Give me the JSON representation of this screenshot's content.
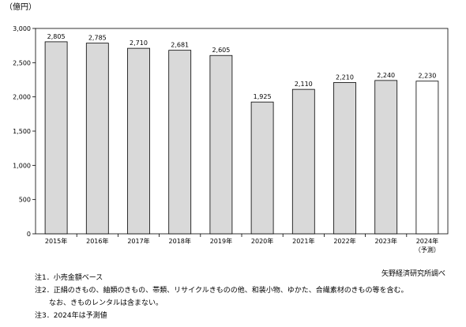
{
  "chart_data": {
    "type": "bar",
    "unit_label": "（億円）",
    "categories": [
      "2015年",
      "2016年",
      "2017年",
      "2018年",
      "2019年",
      "2020年",
      "2021年",
      "2022年",
      "2023年",
      "2024年"
    ],
    "category_sublabels": [
      "",
      "",
      "",
      "",
      "",
      "",
      "",
      "",
      "",
      "（予測）"
    ],
    "values": [
      2805,
      2785,
      2710,
      2681,
      2605,
      1925,
      2110,
      2210,
      2240,
      2230
    ],
    "value_labels": [
      "2,805",
      "2,785",
      "2,710",
      "2,681",
      "2,605",
      "1,925",
      "2,110",
      "2,210",
      "2,240",
      "2,230"
    ],
    "forecast": [
      false,
      false,
      false,
      false,
      false,
      false,
      false,
      false,
      false,
      true
    ],
    "ylim": [
      0,
      3000
    ],
    "yticks": [
      0,
      500,
      1000,
      1500,
      2000,
      2500,
      3000
    ],
    "ytick_labels": [
      "0",
      "500",
      "1,000",
      "1,500",
      "2,000",
      "2,500",
      "3,000"
    ],
    "colors": {
      "bar": "#d9d9d9",
      "forecast_bar": "#ffffff",
      "stroke": "#000000"
    }
  },
  "source": "矢野経済研究所調べ",
  "notes": [
    "注1．小売金額ベース",
    "注2．正絹のきもの、紬類のきもの、帯類、リサイクルきものの他、和装小物、ゆかた、合繊素材のきもの等を含む。",
    "　　なお、きものレンタルは含まない。",
    "注3．2024年は予測値"
  ]
}
